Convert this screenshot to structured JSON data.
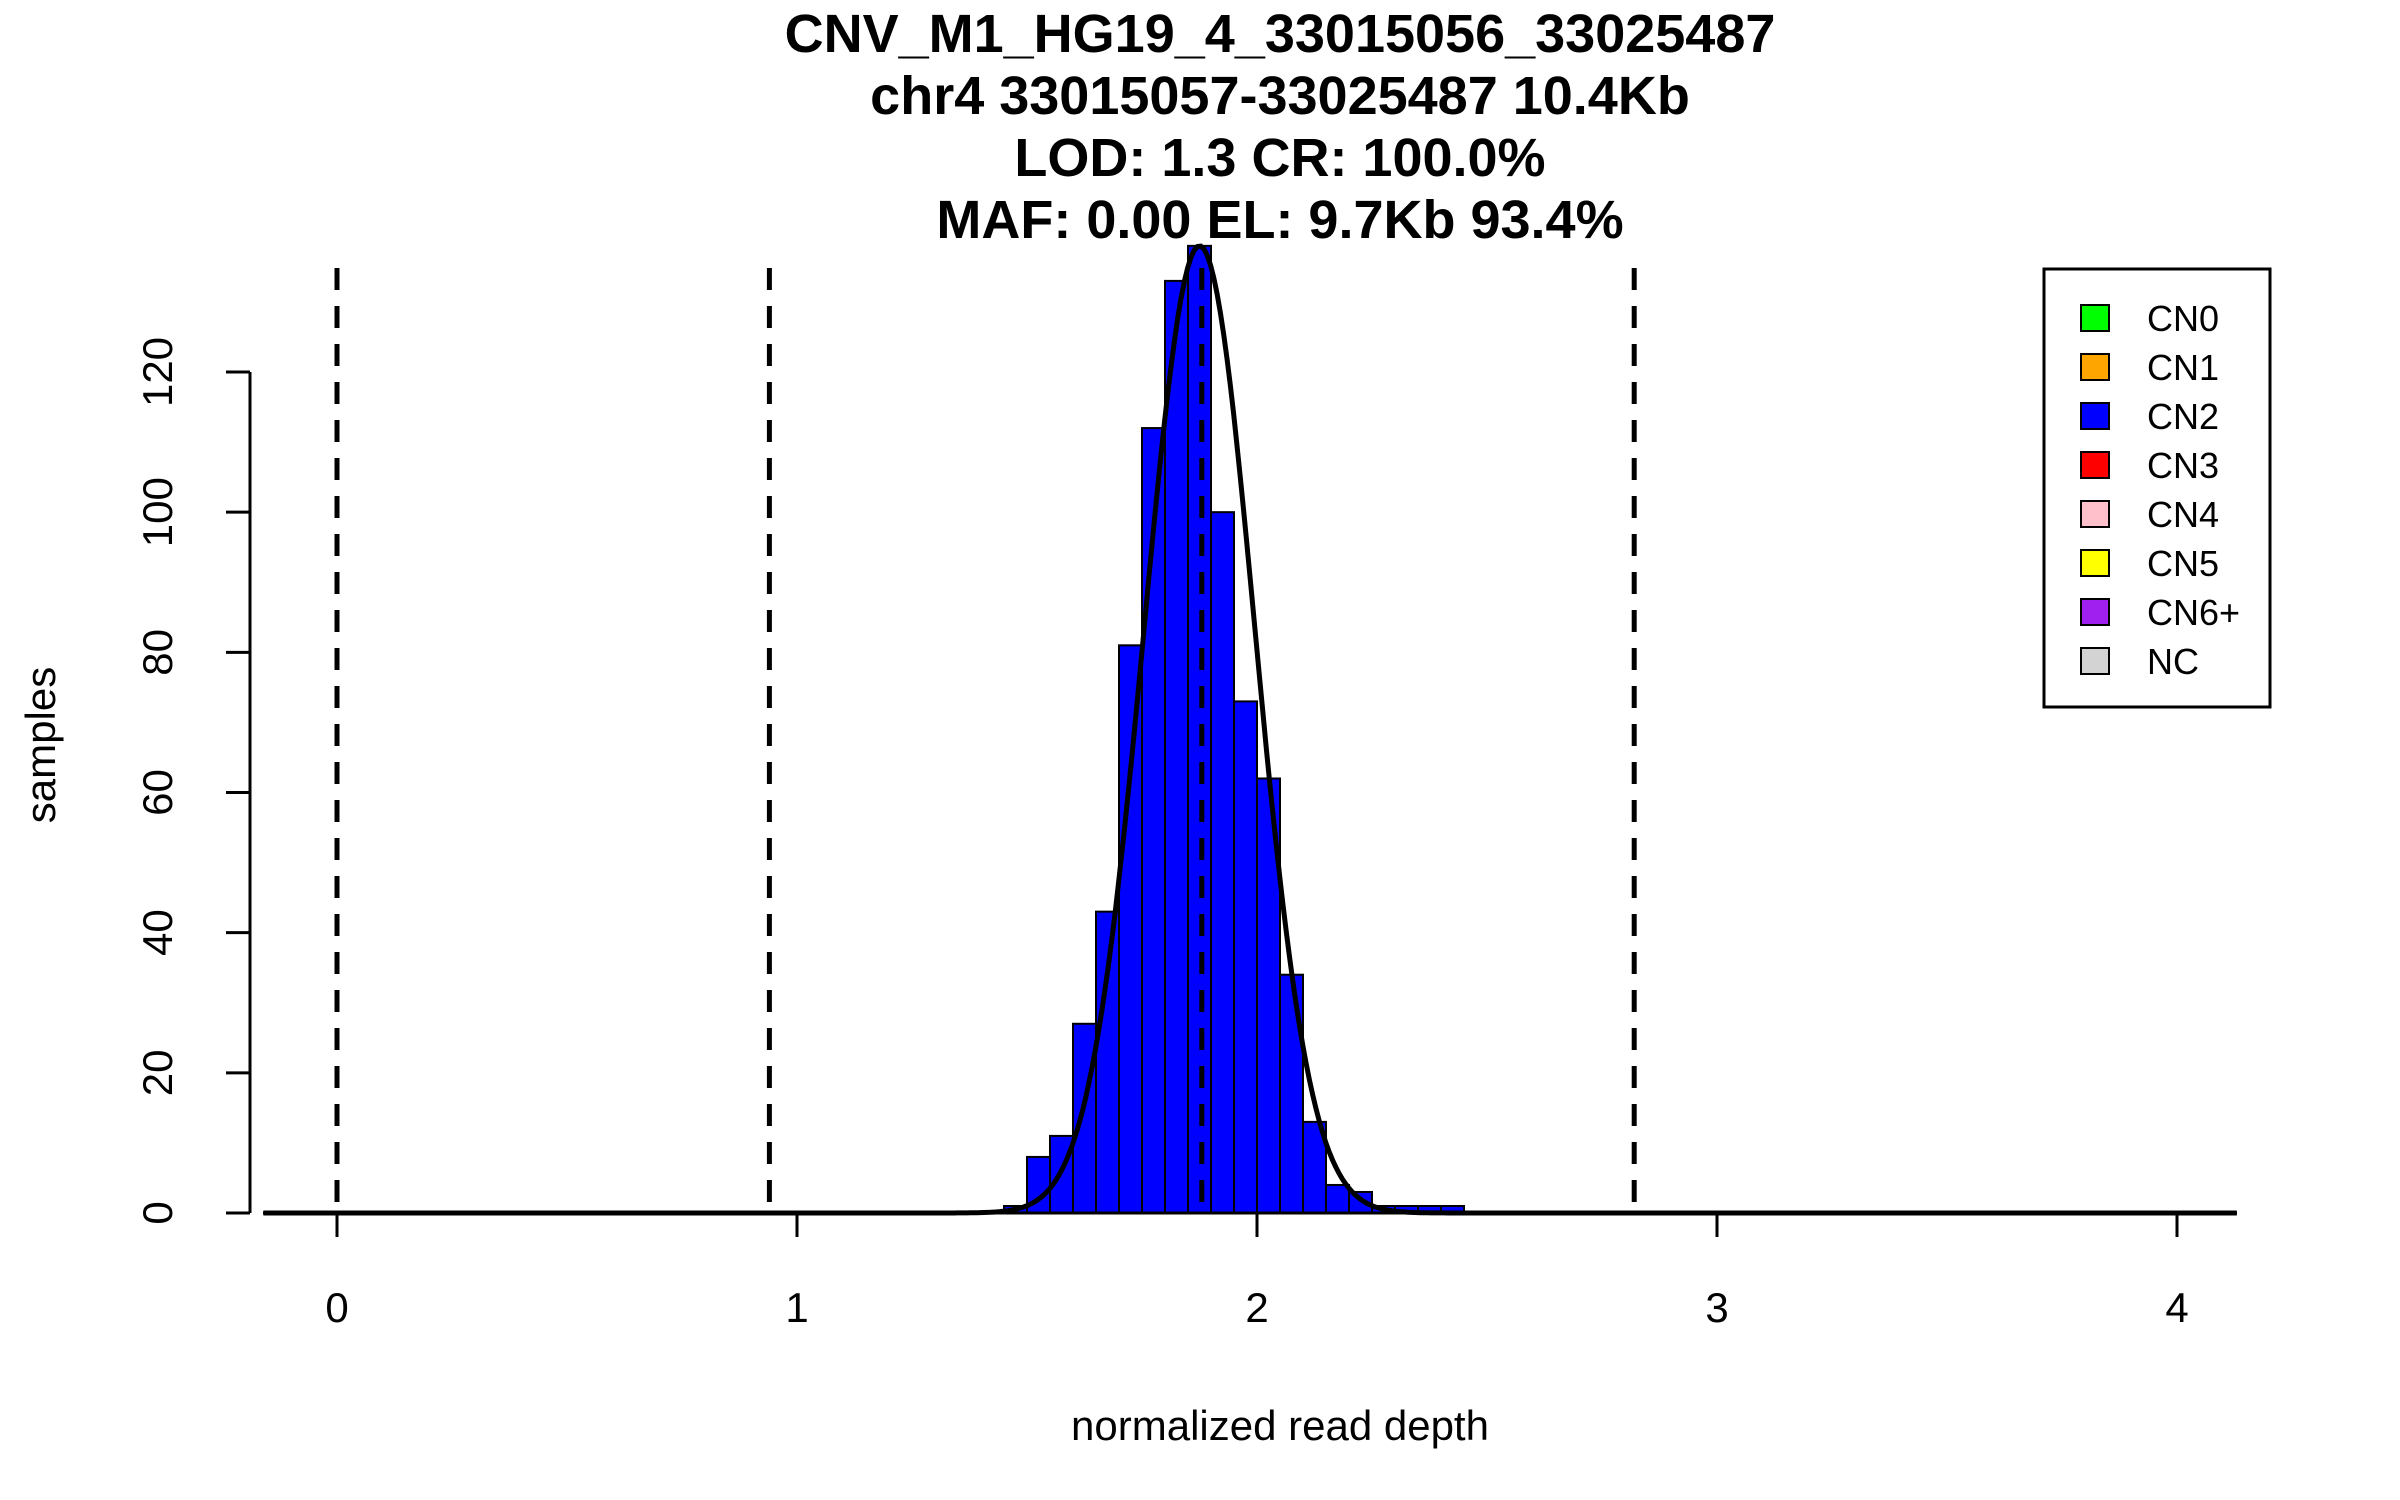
{
  "chart_data": {
    "type": "bar",
    "title_lines": [
      "CNV_M1_HG19_4_33015056_33025487",
      "chr4 33015057-33025487 10.4Kb",
      "LOD: 1.3 CR: 100.0%",
      "MAF: 0.00 EL: 9.7Kb 93.4%"
    ],
    "xlabel": "normalized read depth",
    "ylabel": "samples",
    "xlim": [
      -0.16,
      4.13
    ],
    "ylim": [
      0,
      137
    ],
    "x_ticks": [
      0,
      1,
      2,
      3,
      4
    ],
    "y_ticks": [
      0,
      20,
      40,
      60,
      80,
      100,
      120
    ],
    "bin_width": 0.05,
    "bins": [
      {
        "x0": 1.45,
        "count": 1
      },
      {
        "x0": 1.5,
        "count": 8
      },
      {
        "x0": 1.55,
        "count": 11
      },
      {
        "x0": 1.6,
        "count": 27
      },
      {
        "x0": 1.65,
        "count": 43
      },
      {
        "x0": 1.7,
        "count": 81
      },
      {
        "x0": 1.75,
        "count": 112
      },
      {
        "x0": 1.8,
        "count": 133
      },
      {
        "x0": 1.85,
        "count": 138
      },
      {
        "x0": 1.9,
        "count": 100
      },
      {
        "x0": 1.95,
        "count": 73
      },
      {
        "x0": 2.0,
        "count": 62
      },
      {
        "x0": 2.05,
        "count": 34
      },
      {
        "x0": 2.1,
        "count": 13
      },
      {
        "x0": 2.15,
        "count": 4
      },
      {
        "x0": 2.2,
        "count": 3
      },
      {
        "x0": 2.25,
        "count": 1
      },
      {
        "x0": 2.3,
        "count": 1
      },
      {
        "x0": 2.35,
        "count": 1
      },
      {
        "x0": 2.4,
        "count": 1
      }
    ],
    "bar_color": "#0000ff",
    "fit_curve": {
      "type": "normal",
      "mean": 1.875,
      "sd": 0.12,
      "peak": 138
    },
    "vlines": [
      0,
      0.94,
      1.88,
      2.82
    ],
    "legend": {
      "position": "top-right",
      "items": [
        {
          "label": "CN0",
          "color": "#00ff00"
        },
        {
          "label": "CN1",
          "color": "#ffa500"
        },
        {
          "label": "CN2",
          "color": "#0000ff"
        },
        {
          "label": "CN3",
          "color": "#ff0000"
        },
        {
          "label": "CN4",
          "color": "#ffc0cb"
        },
        {
          "label": "CN5",
          "color": "#ffff00"
        },
        {
          "label": "CN6+",
          "color": "#a020f0"
        },
        {
          "label": "NC",
          "color": "#d3d3d3"
        }
      ]
    }
  }
}
